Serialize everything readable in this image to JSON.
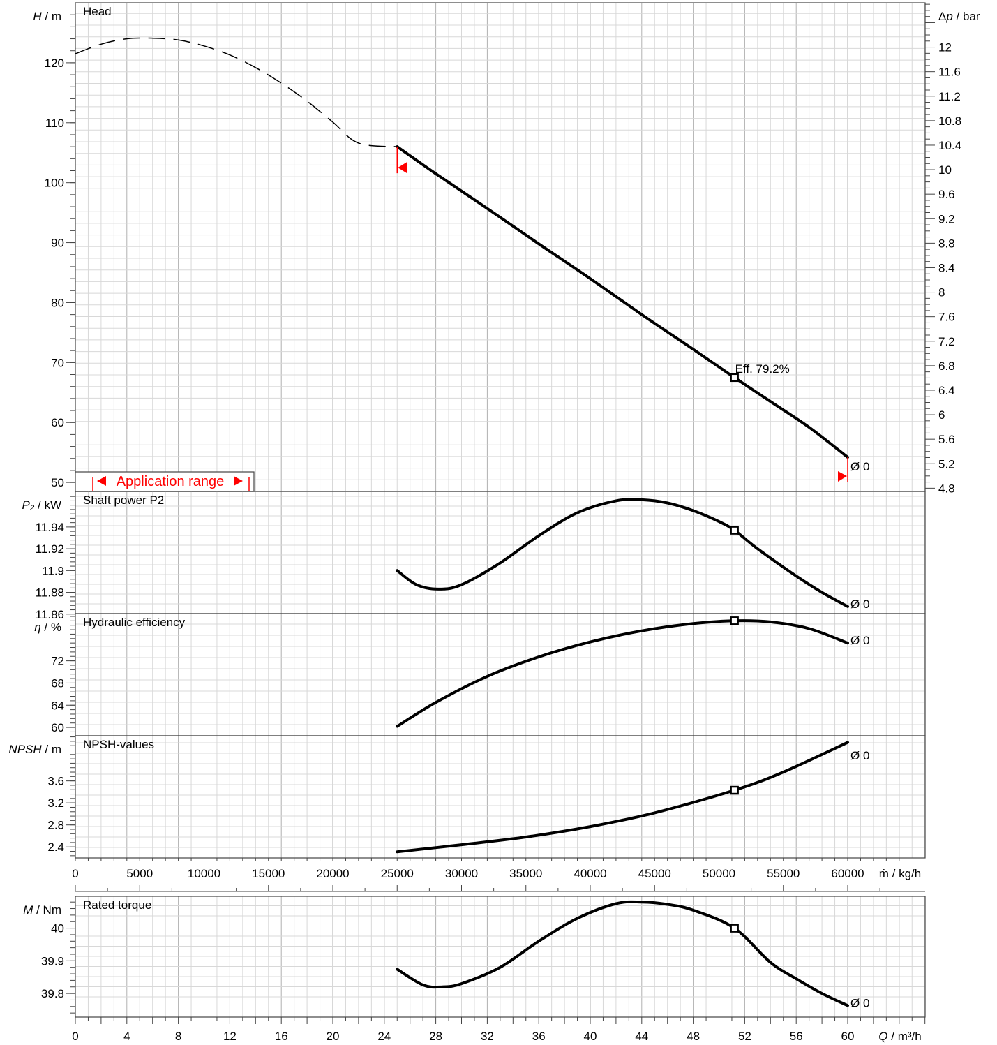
{
  "chart_data": {
    "type": "line",
    "x_axes": {
      "mass_flow": {
        "label": "ṁ / kg/h",
        "ticks": [
          "0",
          "5000",
          "10000",
          "15000",
          "20000",
          "25000",
          "30000",
          "35000",
          "40000",
          "45000",
          "50000",
          "55000",
          "60000"
        ]
      },
      "volume_flow": {
        "label": "Q / m³/h",
        "ticks": [
          "0",
          "4",
          "8",
          "12",
          "16",
          "20",
          "24",
          "28",
          "32",
          "36",
          "40",
          "44",
          "48",
          "52",
          "56",
          "60"
        ],
        "xlim": [
          0,
          60
        ]
      }
    },
    "rated_point_q": 51.2,
    "panels": [
      {
        "id": "head",
        "title": "Head",
        "ylabel": "H / m",
        "ylabel_right": "Δp / bar",
        "ylim": [
          48.5,
          130
        ],
        "yticks": [
          "50",
          "60",
          "70",
          "80",
          "90",
          "100",
          "110",
          "120"
        ],
        "yticks_right": [
          "4.8",
          "5.2",
          "5.6",
          "6",
          "6.4",
          "6.8",
          "7.2",
          "7.6",
          "8",
          "8.4",
          "8.8",
          "9.2",
          "9.6",
          "10",
          "10.4",
          "10.8",
          "11.2",
          "11.6",
          "12"
        ],
        "extrapolated": {
          "x": [
            0,
            2,
            4,
            6,
            8,
            10,
            12,
            14,
            16,
            18,
            20,
            22,
            25
          ],
          "y": [
            121.5,
            123.1,
            124.0,
            124.1,
            123.8,
            122.8,
            121.3,
            119.2,
            116.6,
            113.6,
            110.1,
            106.6,
            106.0
          ]
        },
        "series": [
          {
            "x": [
              25,
              28,
              32,
              36,
              40,
              44,
              48,
              51.2,
              54,
              57,
              60
            ],
            "y": [
              106.0,
              101.5,
              95.7,
              89.8,
              84.0,
              78.0,
              72.2,
              67.5,
              63.5,
              59.2,
              54.2
            ]
          }
        ],
        "rated_value": 67.5,
        "annotation": "Eff.  79.2%",
        "end_label": "Ø 0",
        "application_range": "Application range"
      },
      {
        "id": "power",
        "title": "Shaft power P2",
        "ylabel": "P₂ / kW",
        "ylim": [
          11.8605,
          11.9726
        ],
        "yticks": [
          "11.86",
          "11.88",
          "11.9",
          "11.92",
          "11.94"
        ],
        "series": [
          {
            "x": [
              25,
              26.5,
              28.2,
              30,
              33,
              36,
              39,
              42,
              44,
              46,
              48,
              50,
              51.2,
              53,
              56,
              58,
              60
            ],
            "y": [
              11.9,
              11.887,
              11.883,
              11.887,
              11.907,
              11.932,
              11.953,
              11.964,
              11.965,
              11.962,
              11.955,
              11.945,
              11.937,
              11.92,
              11.895,
              11.88,
              11.867
            ]
          }
        ],
        "rated_value": 11.937,
        "end_label": "Ø 0"
      },
      {
        "id": "efficiency",
        "title": "Hydraulic efficiency",
        "ylabel": "η / %",
        "ylim": [
          58.5,
          80.5
        ],
        "yticks": [
          "60",
          "64",
          "68",
          "72"
        ],
        "series": [
          {
            "x": [
              25,
              28,
              32,
              36,
              40,
              44,
              48,
              51.2,
              54,
              57,
              60
            ],
            "y": [
              60.2,
              64.5,
              69.2,
              72.7,
              75.4,
              77.4,
              78.7,
              79.2,
              79.0,
              77.8,
              75.2
            ]
          }
        ],
        "rated_value": 79.2,
        "end_label": "Ø 0"
      },
      {
        "id": "npsh",
        "title": "NPSH-values",
        "ylabel": "NPSH / m",
        "ylim": [
          2.2,
          4.42
        ],
        "yticks": [
          "2.4",
          "2.8",
          "3.2",
          "3.6"
        ],
        "series": [
          {
            "x": [
              25,
              30,
              35,
              40,
              45,
              51.2,
              55,
              60
            ],
            "y": [
              2.31,
              2.44,
              2.58,
              2.77,
              3.02,
              3.43,
              3.76,
              4.3
            ]
          }
        ],
        "rated_value": 3.43,
        "end_label": "Ø 0"
      },
      {
        "id": "torque",
        "title": "Rated torque",
        "ylabel": "M / Nm",
        "ylim": [
          39.7275,
          40.0975
        ],
        "yticks": [
          "39.8",
          "39.9",
          "40"
        ],
        "series": [
          {
            "x": [
              25,
              27,
              28.5,
              30,
              33,
              36,
              39,
              42,
              44,
              46,
              48,
              51.2,
              54,
              56,
              58,
              60
            ],
            "y": [
              39.874,
              39.826,
              39.82,
              39.83,
              39.88,
              39.96,
              40.03,
              40.075,
              40.08,
              40.073,
              40.055,
              40.0,
              39.895,
              39.845,
              39.8,
              39.763
            ]
          }
        ],
        "rated_value": 40.0,
        "end_label": "Ø 0"
      }
    ]
  }
}
